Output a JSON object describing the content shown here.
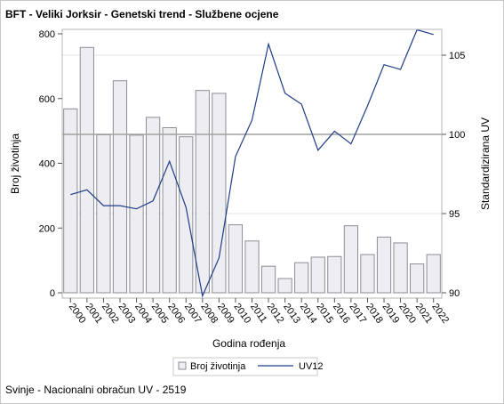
{
  "title": "BFT - Veliki Jorksir - Genetski trend - Službene ocjene",
  "footnote": "Svinje - Nacionalni obračun UV - 2519",
  "colors": {
    "bar_fill": "#eeeef2",
    "bar_stroke": "#8a8e96",
    "line": "#1f3c88",
    "ref_line": "#a0a0a0",
    "grid": "#e6e6e6"
  },
  "chart_data": {
    "type": "bar+line",
    "categories": [
      "2000",
      "2001",
      "2002",
      "2003",
      "2004",
      "2005",
      "2006",
      "2007",
      "2008",
      "2009",
      "2010",
      "2011",
      "2012",
      "2013",
      "2014",
      "2015",
      "2016",
      "2017",
      "2018",
      "2019",
      "2020",
      "2021",
      "2022"
    ],
    "xlabel": "Godina rođenja",
    "y_left": {
      "label": "Broj životinja",
      "range": [
        0,
        800
      ],
      "ticks": [
        0,
        200,
        400,
        600,
        800
      ]
    },
    "y_right": {
      "label": "Standardizirana UV",
      "range": [
        90,
        106.5
      ],
      "ticks": [
        90,
        95,
        100,
        105
      ]
    },
    "reference_line_right": 100,
    "series": [
      {
        "name": "Broj životinja",
        "type": "bar",
        "axis": "left",
        "values": [
          568,
          758,
          488,
          655,
          487,
          542,
          510,
          482,
          625,
          616,
          210,
          160,
          82,
          44,
          93,
          110,
          112,
          207,
          118,
          172,
          154,
          89,
          118
        ]
      },
      {
        "name": "UV12",
        "type": "line",
        "axis": "right",
        "values": [
          96.2,
          96.5,
          95.5,
          95.5,
          95.3,
          95.8,
          98.3,
          95.4,
          89.8,
          92.2,
          98.6,
          100.9,
          105.7,
          102.6,
          101.9,
          99.0,
          100.2,
          99.4,
          101.8,
          104.4,
          104.1,
          106.6,
          106.3
        ]
      }
    ],
    "legend": {
      "placement": "bottom-center",
      "items": [
        "Broj životinja",
        "UV12"
      ]
    }
  }
}
